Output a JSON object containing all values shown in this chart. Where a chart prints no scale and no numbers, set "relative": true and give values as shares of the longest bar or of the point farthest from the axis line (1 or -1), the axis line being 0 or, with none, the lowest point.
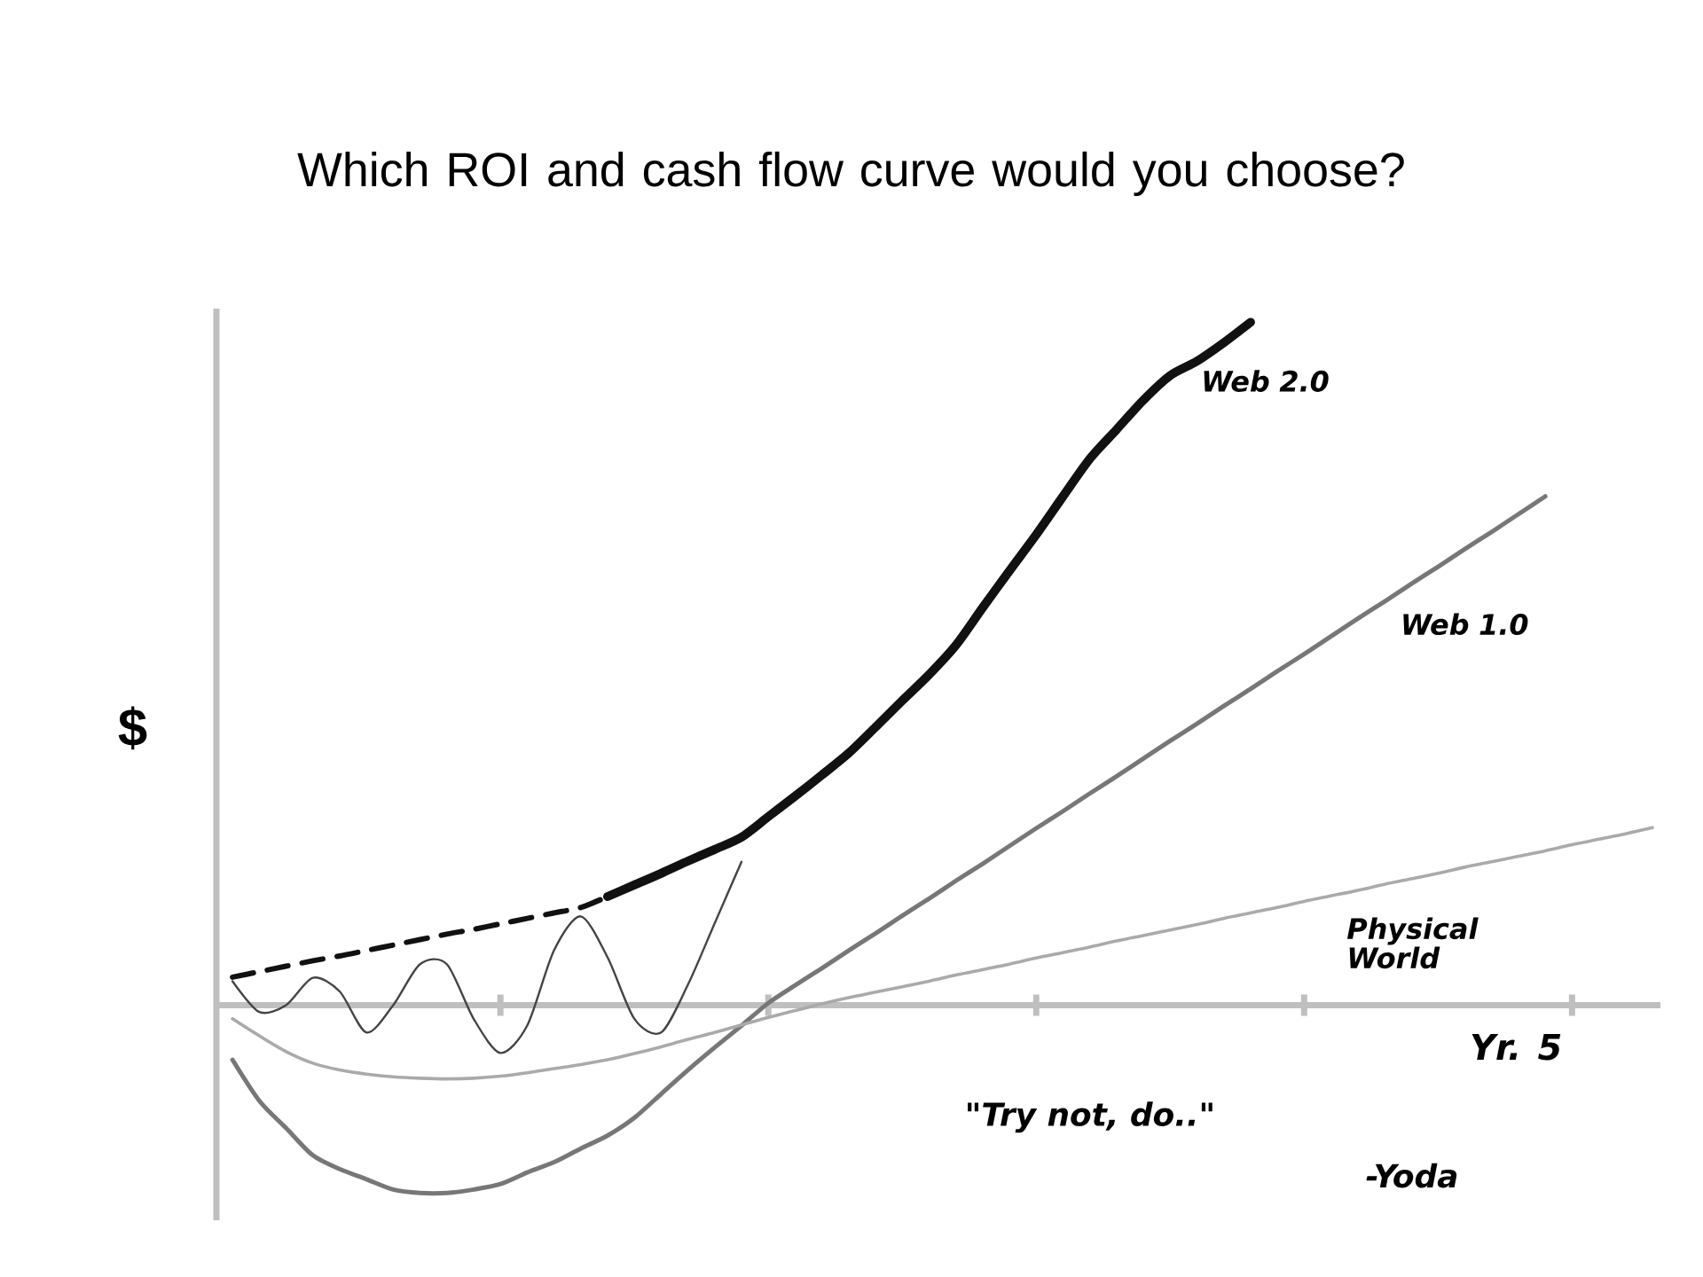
{
  "chart_data": {
    "type": "line",
    "relative": true,
    "title": "Which ROI and cash flow curve would you choose?",
    "xlabel": "Yr. 5",
    "ylabel": "$",
    "categories": [
      null,
      null,
      null,
      null,
      null,
      null,
      null,
      null,
      null,
      null,
      null,
      null,
      null,
      null,
      null,
      null,
      null,
      null,
      null,
      null,
      null,
      null,
      null,
      null,
      null,
      null,
      null,
      null,
      null,
      null,
      null,
      null,
      null,
      null,
      null,
      null,
      null,
      null,
      null,
      null,
      null,
      null,
      null,
      null,
      null,
      null,
      null,
      null,
      null,
      null,
      null,
      null,
      null,
      null
    ],
    "annotations": [
      "\"Try not, do..\"",
      "-Yoda"
    ],
    "series": [
      {
        "name": "Web 2.0",
        "color": "#111111",
        "line_style": "solid",
        "values": [
          null,
          null,
          null,
          null,
          null,
          null,
          null,
          null,
          null,
          null,
          null,
          null,
          null,
          null,
          0.159,
          0.176,
          0.193,
          0.211,
          0.228,
          0.246,
          0.276,
          0.306,
          0.337,
          0.369,
          0.407,
          0.446,
          0.484,
          0.527,
          0.582,
          0.636,
          0.689,
          0.745,
          0.8,
          0.843,
          0.886,
          0.922,
          0.943,
          0.97,
          1.0,
          null,
          null,
          null,
          null,
          null,
          null,
          null,
          null,
          null,
          null,
          null,
          null,
          null,
          null,
          null
        ]
      },
      {
        "color": "#111111",
        "line_style": "dashed",
        "values": [
          0.041,
          0.049,
          0.057,
          0.065,
          0.072,
          0.08,
          0.088,
          0.096,
          0.104,
          0.111,
          0.119,
          0.127,
          0.135,
          0.143,
          0.159,
          null,
          null,
          null,
          null,
          null,
          null,
          null,
          null,
          null,
          null,
          null,
          null,
          null,
          null,
          null,
          null,
          null,
          null,
          null,
          null,
          null,
          null,
          null,
          null,
          null,
          null,
          null,
          null,
          null,
          null,
          null,
          null,
          null,
          null,
          null,
          null,
          null,
          null,
          null
        ]
      },
      {
        "color": "#444444",
        "line_style": "solid",
        "values": [
          0.035,
          -0.01,
          0.0,
          0.04,
          0.02,
          -0.04,
          0.0,
          0.06,
          0.06,
          -0.02,
          -0.07,
          -0.03,
          0.08,
          0.13,
          0.07,
          -0.02,
          -0.04,
          0.03,
          0.12,
          0.21,
          null,
          null,
          null,
          null,
          null,
          null,
          null,
          null,
          null,
          null,
          null,
          null,
          null,
          null,
          null,
          null,
          null,
          null,
          null,
          null,
          null,
          null,
          null,
          null,
          null,
          null,
          null,
          null,
          null,
          null,
          null,
          null,
          null,
          null
        ]
      },
      {
        "name": "Web 1.0",
        "color": "#777777",
        "line_style": "solid",
        "values": [
          -0.08,
          -0.14,
          -0.18,
          -0.22,
          -0.24,
          -0.255,
          -0.27,
          -0.275,
          -0.275,
          -0.27,
          -0.262,
          -0.245,
          -0.23,
          -0.21,
          -0.191,
          -0.165,
          -0.13,
          -0.095,
          -0.062,
          -0.03,
          0.003,
          0.029,
          0.054,
          0.08,
          0.105,
          0.131,
          0.156,
          0.182,
          0.207,
          0.233,
          0.259,
          0.284,
          0.31,
          0.335,
          0.361,
          0.387,
          0.412,
          0.438,
          0.463,
          0.489,
          0.514,
          0.54,
          0.566,
          0.591,
          0.617,
          0.642,
          0.668,
          0.693,
          0.719,
          0.745,
          null,
          null,
          null,
          null
        ]
      },
      {
        "name": "Physical World",
        "color": "#aaaaaa",
        "line_style": "solid",
        "values": [
          -0.02,
          -0.045,
          -0.068,
          -0.085,
          -0.095,
          -0.101,
          -0.105,
          -0.107,
          -0.108,
          -0.107,
          -0.104,
          -0.099,
          -0.093,
          -0.087,
          -0.08,
          -0.071,
          -0.061,
          -0.05,
          -0.04,
          -0.029,
          -0.018,
          -0.008,
          0.002,
          0.011,
          0.019,
          0.027,
          0.035,
          0.044,
          0.052,
          0.06,
          0.069,
          0.077,
          0.085,
          0.094,
          0.102,
          0.11,
          0.118,
          0.127,
          0.135,
          0.143,
          0.152,
          0.16,
          0.168,
          0.177,
          0.185,
          0.193,
          0.202,
          0.21,
          0.218,
          0.226,
          0.235,
          0.243,
          0.251,
          0.26
        ]
      }
    ]
  }
}
